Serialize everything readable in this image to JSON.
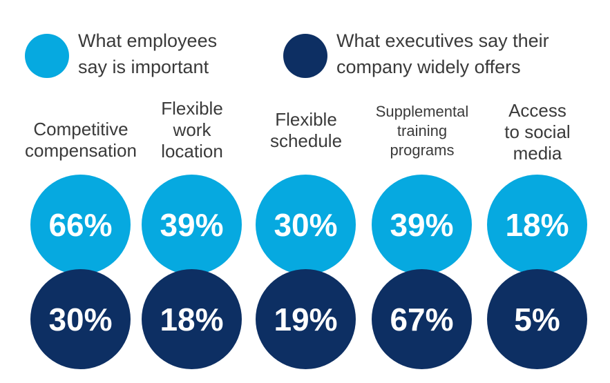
{
  "colors": {
    "employees": "#06a9e0",
    "executives": "#0d2f63"
  },
  "chart_data": {
    "type": "bubble-comparison",
    "legend": [
      {
        "key": "employees",
        "label": "What employees\nsay is important"
      },
      {
        "key": "executives",
        "label": "What executives say their\ncompany widely offers"
      }
    ],
    "categories": [
      "Competitive\ncompensation",
      "Flexible\nwork\nlocation",
      "Flexible\nschedule",
      "Supplemental\ntraining\nprograms",
      "Access\nto social\nmedia"
    ],
    "series": [
      {
        "name": "What employees say is important",
        "values": [
          66,
          39,
          30,
          39,
          18
        ]
      },
      {
        "name": "What executives say their company widely offers",
        "values": [
          30,
          18,
          19,
          67,
          5
        ]
      }
    ],
    "value_labels": [
      [
        "66%",
        "39%",
        "30%",
        "39%",
        "18%"
      ],
      [
        "30%",
        "18%",
        "19%",
        "67%",
        "5%"
      ]
    ]
  }
}
